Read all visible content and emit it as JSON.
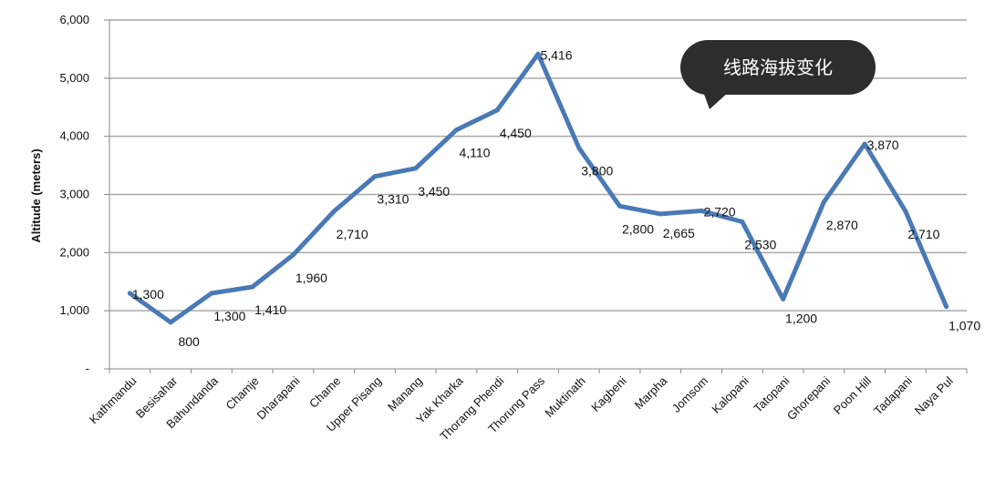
{
  "chart_data": {
    "type": "line",
    "title": "",
    "ylabel": "Altitude (meters)",
    "xlabel": "",
    "ylim": [
      0,
      6000
    ],
    "y_ticks": [
      {
        "value": 0,
        "label": "-"
      },
      {
        "value": 1000,
        "label": "1,000"
      },
      {
        "value": 2000,
        "label": "2,000"
      },
      {
        "value": 3000,
        "label": "3,000"
      },
      {
        "value": 4000,
        "label": "4,000"
      },
      {
        "value": 5000,
        "label": "5,000"
      },
      {
        "value": 6000,
        "label": "6,000"
      }
    ],
    "grid": true,
    "legend": "none",
    "categories": [
      "Kathmandu",
      "Besisahar",
      "Bahundanda",
      "Chamje",
      "Dharapani",
      "Chame",
      "Upper Pisang",
      "Manang",
      "Yak Kharka",
      "Thorang Phendi",
      "Thorung Pass",
      "Muktinath",
      "Kagbeni",
      "Marpha",
      "Jomsom",
      "Kalopani",
      "Tatopani",
      "Ghorepani",
      "Poon Hill",
      "Tadapani",
      "Naya Pul"
    ],
    "series": [
      {
        "color": "#4a7ab5",
        "values": [
          1300,
          800,
          1300,
          1410,
          1960,
          2710,
          3310,
          3450,
          4110,
          4450,
          5416,
          3800,
          2800,
          2665,
          2720,
          2530,
          1200,
          2870,
          3870,
          2710,
          1070
        ],
        "data_labels": [
          "1,300",
          "800",
          "1,300",
          "1,410",
          "1,960",
          "2,710",
          "3,310",
          "3,450",
          "4,110",
          "4,450",
          "5,416",
          "3,800",
          "2,800",
          "2,665",
          "2,720",
          "2,530",
          "1,200",
          "2,870",
          "3,870",
          "2,710",
          "1,070"
        ]
      }
    ]
  },
  "annotation": {
    "text": "线路海拔变化",
    "bg_color": "#2d2d2d",
    "text_color": "#ffffff"
  }
}
